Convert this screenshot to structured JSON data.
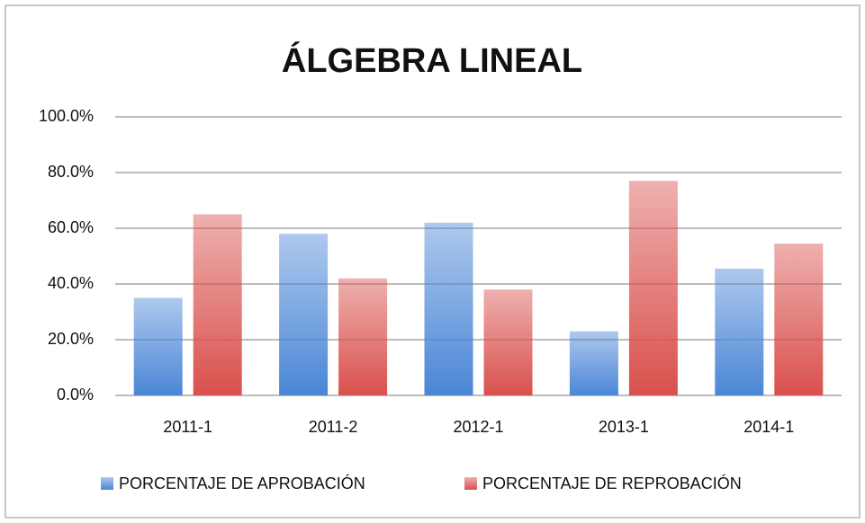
{
  "chart_data": {
    "type": "bar",
    "title": "ÁLGEBRA LINEAL",
    "categories": [
      "2011-1",
      "2011-2",
      "2012-1",
      "2013-1",
      "2014-1"
    ],
    "series": [
      {
        "name": "PORCENTAJE DE APROBACIÓN",
        "color": "#4a86d6",
        "values": [
          35,
          58,
          62,
          23,
          45.5
        ]
      },
      {
        "name": "PORCENTAJE DE REPROBACIÓN",
        "color": "#d9504c",
        "values": [
          65,
          42,
          38,
          77,
          54.5
        ]
      }
    ],
    "ylim": [
      0,
      100
    ],
    "yticks": [
      {
        "value": 0,
        "label": "0.0%"
      },
      {
        "value": 20,
        "label": "20.0%"
      },
      {
        "value": 40,
        "label": "40.0%"
      },
      {
        "value": 60,
        "label": "60.0%"
      },
      {
        "value": 80,
        "label": "80.0%"
      },
      {
        "value": 100,
        "label": "100.0%"
      }
    ],
    "grid": true,
    "legend": "bottom"
  }
}
